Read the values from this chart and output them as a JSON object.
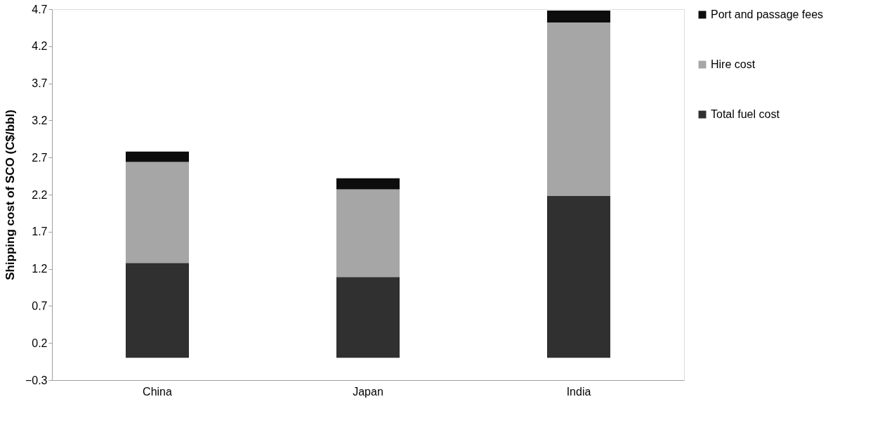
{
  "chart_data": {
    "type": "bar",
    "stacked": true,
    "ylabel": "Shipping cost of SCO (C$/bbl)",
    "categories": [
      "China",
      "Japan",
      "India"
    ],
    "series": [
      {
        "name": "Total fuel cost",
        "color": "#303030",
        "values": [
          1.28,
          1.09,
          2.18
        ]
      },
      {
        "name": "Hire cost",
        "color": "#a6a6a6",
        "values": [
          1.36,
          1.18,
          2.34
        ]
      },
      {
        "name": "Port and passage fees",
        "color": "#0d0d0d",
        "values": [
          0.14,
          0.15,
          0.16
        ]
      }
    ],
    "ylim": [
      -0.3,
      4.7
    ],
    "yticks": [
      -0.3,
      0.2,
      0.7,
      1.2,
      1.7,
      2.2,
      2.7,
      3.2,
      3.7,
      4.2,
      4.7
    ],
    "grid": false,
    "legend": "right"
  }
}
